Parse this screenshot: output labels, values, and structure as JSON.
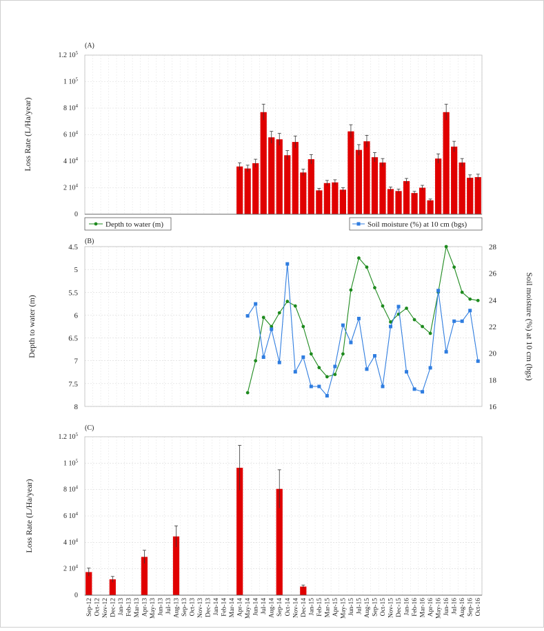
{
  "figure": {
    "months": [
      "Sep-12",
      "Oct-12",
      "Nov-12",
      "Dec-12",
      "Jan-13",
      "Feb-13",
      "Mar-13",
      "Apr-13",
      "May-13",
      "Jun-13",
      "Jul-13",
      "Aug-13",
      "Sep-13",
      "Oct-13",
      "Nov-13",
      "Dec-13",
      "Jan-14",
      "Feb-14",
      "Mar-14",
      "Apr-14",
      "May-14",
      "Jun-14",
      "Jul-14",
      "Aug-14",
      "Sep-14",
      "Oct-14",
      "Nov-14",
      "Dec-14",
      "Jan-15",
      "Feb-15",
      "Mar-15",
      "Apr-15",
      "May-15",
      "Jun-15",
      "Jul-15",
      "Aug-15",
      "Sep-15",
      "Oct-15",
      "Nov-15",
      "Dec-15",
      "Jan-16",
      "Feb-16",
      "Mar-16",
      "Apr-16",
      "May-16",
      "Jun-16",
      "Jul-16",
      "Aug-16",
      "Sep-16",
      "Oct-16"
    ],
    "colors": {
      "bar": "#e00000",
      "depth": "#1e8a1e",
      "soil": "#2f7de0"
    }
  },
  "chart_data": [
    {
      "panel": "(A)",
      "type": "bar",
      "ylabel": "Loss Rate (L/Ha/year)",
      "ylim": [
        0,
        120000
      ],
      "yticks": [
        {
          "v": 0,
          "m": "0",
          "e": ""
        },
        {
          "v": 20000,
          "m": "2 10",
          "e": "4"
        },
        {
          "v": 40000,
          "m": "4 10",
          "e": "4"
        },
        {
          "v": 60000,
          "m": "6 10",
          "e": "4"
        },
        {
          "v": 80000,
          "m": "8 10",
          "e": "4"
        },
        {
          "v": 100000,
          "m": "1 10",
          "e": "5"
        },
        {
          "v": 120000,
          "m": "1.2 10",
          "e": "5"
        }
      ],
      "grid": true,
      "values": [
        null,
        null,
        null,
        null,
        null,
        null,
        null,
        null,
        null,
        null,
        null,
        null,
        null,
        null,
        null,
        null,
        null,
        null,
        null,
        36000,
        34500,
        38500,
        77000,
        58000,
        56500,
        44500,
        54500,
        31500,
        41500,
        18000,
        23500,
        24000,
        18500,
        62500,
        48500,
        55000,
        43000,
        39000,
        19000,
        17500,
        25000,
        16000,
        20000,
        10500,
        42000,
        77000,
        51000,
        39000,
        27500,
        28000
      ],
      "errors": [
        null,
        null,
        null,
        null,
        null,
        null,
        null,
        null,
        null,
        null,
        null,
        null,
        null,
        null,
        null,
        null,
        null,
        null,
        null,
        2800,
        2500,
        3000,
        6000,
        4500,
        4500,
        3500,
        4500,
        2500,
        3500,
        1500,
        2000,
        2000,
        1500,
        5000,
        4000,
        4500,
        3500,
        3000,
        1500,
        1500,
        2000,
        1300,
        1800,
        1000,
        3500,
        6000,
        4000,
        3000,
        2200,
        2200
      ]
    },
    {
      "panel": "(B)",
      "type": "line",
      "ylabel": "Depth to water (m)",
      "y2label": "Soil moisture (%) at 10 cm (bgs)",
      "ylim": [
        4.5,
        8
      ],
      "y_inverted": true,
      "yticks": [
        "4.5",
        "5",
        "5.5",
        "6",
        "6.5",
        "7",
        "7.5",
        "8"
      ],
      "y2lim": [
        16,
        28
      ],
      "y2ticks": [
        "16",
        "18",
        "20",
        "22",
        "24",
        "26",
        "28"
      ],
      "grid": true,
      "legend": "top",
      "series": [
        {
          "name": "Depth to water (m)",
          "axis": "left",
          "marker": "circle",
          "values": [
            null,
            null,
            null,
            null,
            null,
            null,
            null,
            null,
            null,
            null,
            null,
            null,
            null,
            null,
            null,
            null,
            null,
            null,
            null,
            null,
            7.7,
            7.0,
            6.05,
            6.25,
            5.95,
            5.7,
            5.8,
            6.25,
            6.85,
            7.15,
            7.35,
            7.3,
            6.85,
            5.45,
            4.75,
            4.95,
            5.4,
            5.8,
            6.15,
            5.98,
            5.85,
            6.1,
            6.25,
            6.4,
            5.5,
            4.5,
            4.95,
            5.5,
            5.65,
            5.68
          ]
        },
        {
          "name": "Soil moisture (%) at 10 cm (bgs)",
          "axis": "right",
          "marker": "square",
          "values": [
            null,
            null,
            null,
            null,
            null,
            null,
            null,
            null,
            null,
            null,
            null,
            null,
            null,
            null,
            null,
            null,
            null,
            null,
            null,
            null,
            22.8,
            23.7,
            19.7,
            21.8,
            19.3,
            26.7,
            18.6,
            19.7,
            17.5,
            17.5,
            16.8,
            19,
            22.1,
            20.8,
            22.6,
            18.8,
            19.8,
            17.5,
            22,
            23.5,
            18.6,
            17.3,
            17.1,
            18.9,
            24.7,
            20.1,
            22.4,
            22.4,
            23.2,
            19.4
          ]
        }
      ]
    },
    {
      "panel": "(C)",
      "type": "bar",
      "ylabel": "Loss Rate (L/Ha/year)",
      "ylim": [
        0,
        120000
      ],
      "yticks": [
        {
          "v": 0,
          "m": "0",
          "e": ""
        },
        {
          "v": 20000,
          "m": "2 10",
          "e": "4"
        },
        {
          "v": 40000,
          "m": "4 10",
          "e": "4"
        },
        {
          "v": 60000,
          "m": "6 10",
          "e": "4"
        },
        {
          "v": 80000,
          "m": "8 10",
          "e": "4"
        },
        {
          "v": 100000,
          "m": "1 10",
          "e": "5"
        },
        {
          "v": 120000,
          "m": "1.2 10",
          "e": "5"
        }
      ],
      "grid": true,
      "values": [
        17500,
        null,
        null,
        12000,
        null,
        null,
        null,
        29000,
        null,
        null,
        null,
        44500,
        null,
        null,
        null,
        null,
        null,
        null,
        null,
        96500,
        null,
        null,
        null,
        null,
        80500,
        null,
        null,
        6500,
        null,
        null,
        null,
        null,
        null,
        null,
        null,
        null,
        null,
        null,
        null,
        null,
        null,
        null,
        null,
        null,
        null,
        null,
        null,
        null,
        null,
        null
      ],
      "errors": [
        3000,
        null,
        null,
        2200,
        null,
        null,
        null,
        5000,
        null,
        null,
        null,
        8000,
        null,
        null,
        null,
        null,
        null,
        null,
        null,
        17000,
        null,
        null,
        null,
        null,
        14500,
        null,
        null,
        1200,
        null,
        null,
        null,
        null,
        null,
        null,
        null,
        null,
        null,
        null,
        null,
        null,
        null,
        null,
        null,
        null,
        null,
        null,
        null,
        null,
        null,
        null
      ]
    }
  ]
}
